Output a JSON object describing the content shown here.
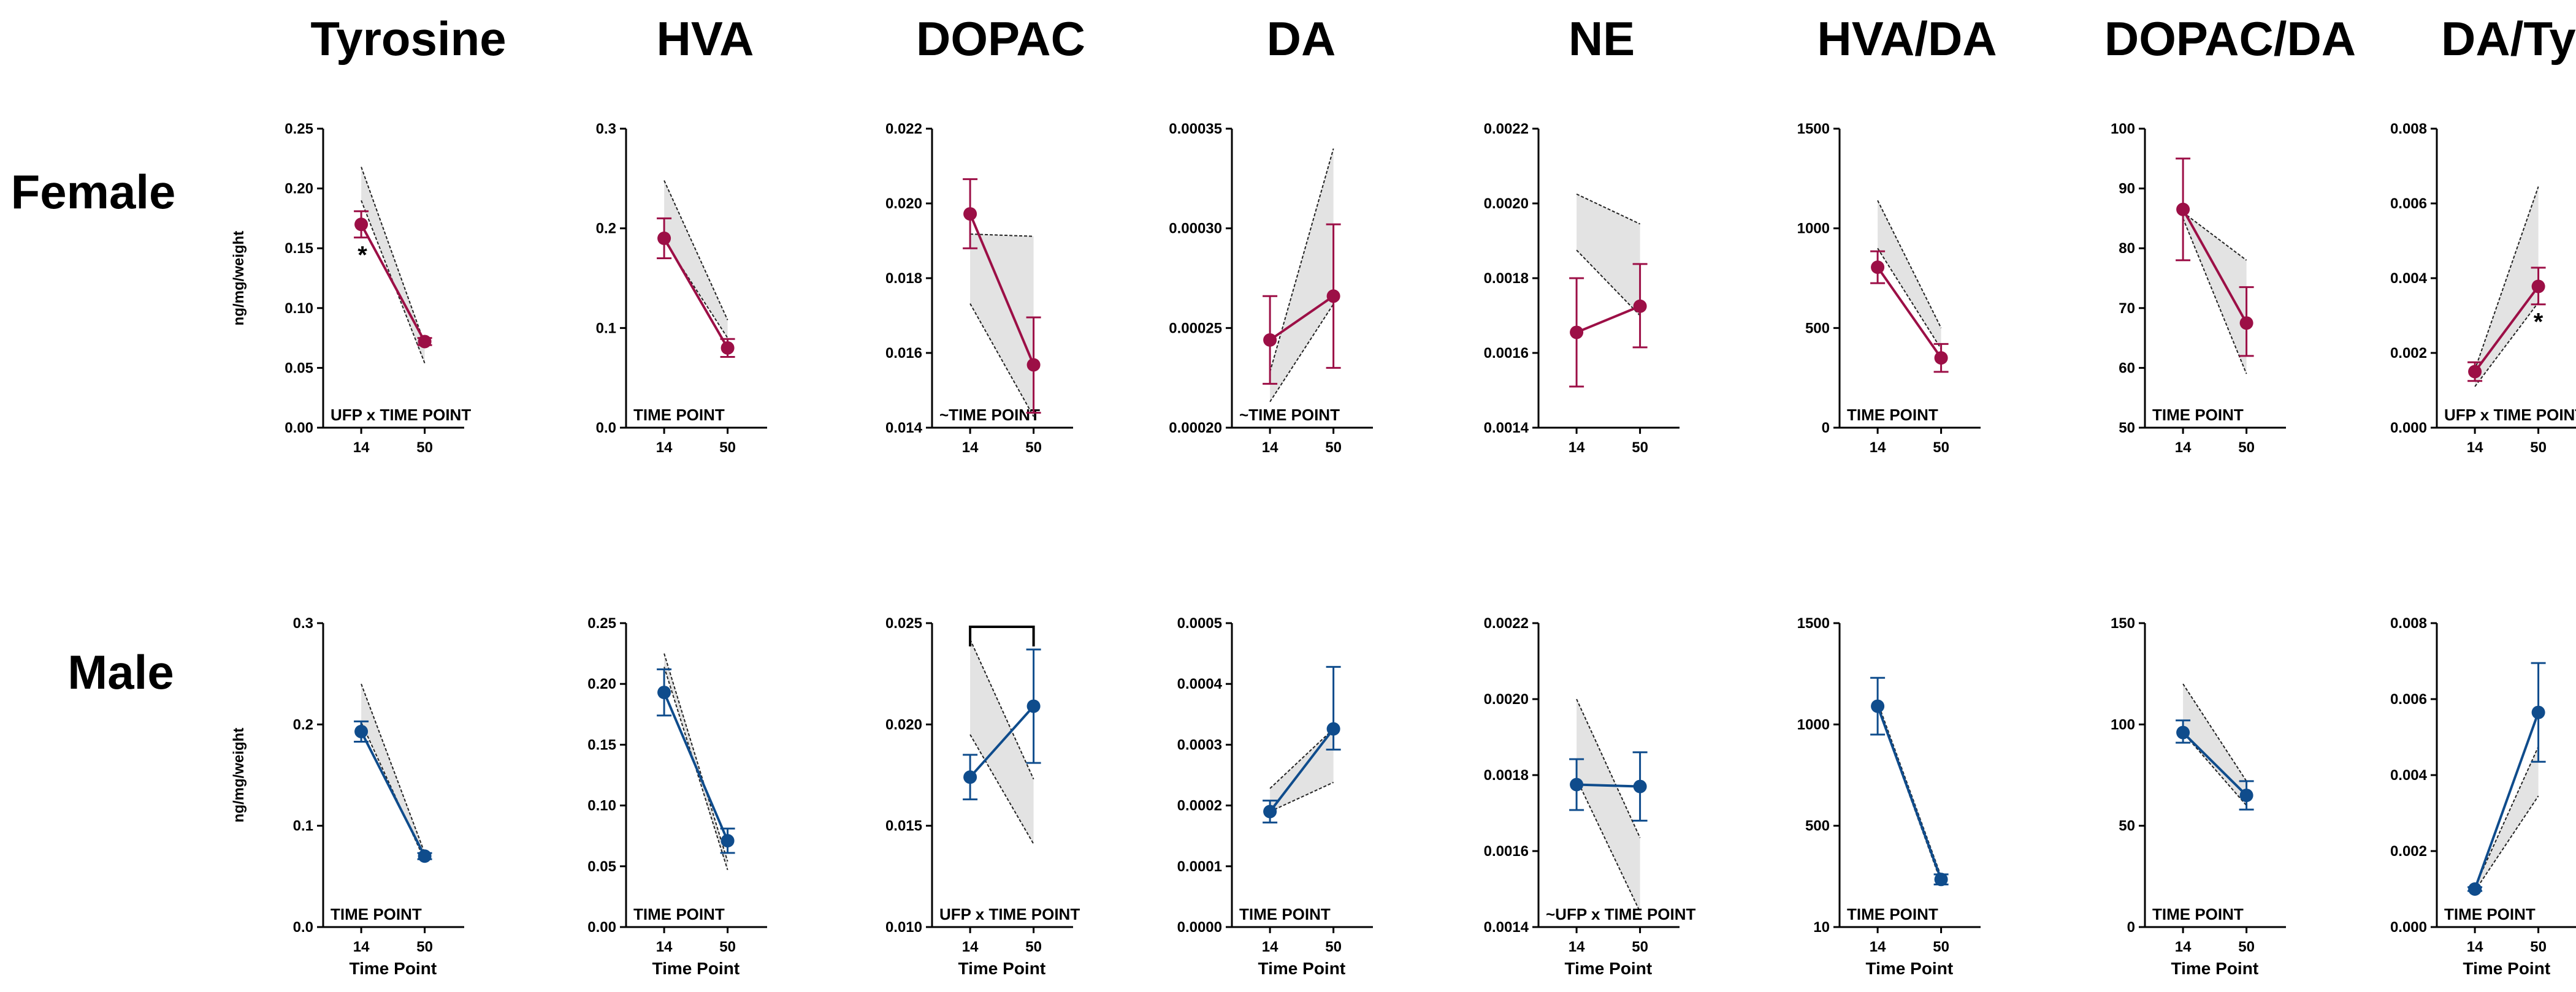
{
  "column_titles": [
    "Tyrosine",
    "HVA",
    "DOPAC",
    "DA",
    "NE",
    "HVA/DA",
    "DOPAC/DA",
    "DA/Tyr"
  ],
  "row_titles": [
    "Female",
    "Male"
  ],
  "colors": {
    "female": "#9c0f46",
    "male": "#0f4c8c",
    "band": "#e3e3e3",
    "axis": "#000000"
  },
  "chart_data": [
    {
      "type": "line",
      "row": "Female",
      "title": "Tyrosine",
      "ylabel": "ng/mg/weight",
      "xlabel": "",
      "x": [
        "14",
        "50"
      ],
      "ylim": [
        0,
        0.25
      ],
      "yticks": [
        "0.00",
        "0.05",
        "0.10",
        "0.15",
        "0.20",
        "0.25"
      ],
      "values": [
        0.17,
        0.072
      ],
      "err_low": [
        0.159,
        0.069
      ],
      "err_high": [
        0.181,
        0.075
      ],
      "band_upper": [
        0.218,
        0.07
      ],
      "band_lower": [
        0.19,
        0.054
      ],
      "annotation": "UFP x TIME POINT",
      "star": "*",
      "star_point": 0,
      "star_side": "below"
    },
    {
      "type": "line",
      "row": "Female",
      "title": "HVA",
      "ylabel": "",
      "xlabel": "",
      "x": [
        "14",
        "50"
      ],
      "ylim": [
        0,
        0.3
      ],
      "yticks": [
        "0.0",
        "0.1",
        "0.2",
        "0.3"
      ],
      "values": [
        0.19,
        0.08
      ],
      "err_low": [
        0.17,
        0.071
      ],
      "err_high": [
        0.21,
        0.089
      ],
      "band_upper": [
        0.248,
        0.108
      ],
      "band_lower": [
        0.188,
        0.09
      ],
      "annotation": "TIME POINT"
    },
    {
      "type": "line",
      "row": "Female",
      "title": "DOPAC",
      "ylabel": "",
      "xlabel": "",
      "x": [
        "14",
        "50"
      ],
      "ylim": [
        0.014,
        0.022
      ],
      "yticks": [
        "0.014",
        "0.016",
        "0.018",
        "0.020",
        "0.022"
      ],
      "values": [
        0.01972,
        0.01568
      ],
      "err_low": [
        0.0188,
        0.0144
      ],
      "err_high": [
        0.02065,
        0.01695
      ],
      "band_upper": [
        0.01918,
        0.01912
      ],
      "band_lower": [
        0.01732,
        0.0143
      ],
      "annotation": "~TIME POINT"
    },
    {
      "type": "line",
      "row": "Female",
      "title": "DA",
      "ylabel": "",
      "xlabel": "",
      "x": [
        "14",
        "50"
      ],
      "ylim": [
        0.0002,
        0.00035
      ],
      "yticks": [
        "0.00020",
        "0.00025",
        "0.00030",
        "0.00035"
      ],
      "values": [
        0.000244,
        0.000266
      ],
      "err_low": [
        0.000222,
        0.00023
      ],
      "err_high": [
        0.000266,
        0.000302
      ],
      "band_upper": [
        0.000228,
        0.00034
      ],
      "band_lower": [
        0.000213,
        0.000262
      ],
      "annotation": "~TIME POINT"
    },
    {
      "type": "line",
      "row": "Female",
      "title": "NE",
      "ylabel": "",
      "xlabel": "",
      "x": [
        "14",
        "50"
      ],
      "ylim": [
        0.0014,
        0.0022
      ],
      "yticks": [
        "0.0014",
        "0.0016",
        "0.0018",
        "0.0020",
        "0.0022"
      ],
      "values": [
        0.001655,
        0.001725
      ],
      "err_low": [
        0.00151,
        0.001615
      ],
      "err_high": [
        0.0018,
        0.001838
      ],
      "band_upper": [
        0.002025,
        0.001945
      ],
      "band_lower": [
        0.001875,
        0.0017
      ],
      "annotation": ""
    },
    {
      "type": "line",
      "row": "Female",
      "title": "HVA/DA",
      "ylabel": "",
      "xlabel": "",
      "x": [
        "14",
        "50"
      ],
      "ylim": [
        0,
        1500
      ],
      "yticks": [
        "0",
        "500",
        "1000",
        "1500"
      ],
      "values": [
        805,
        350
      ],
      "err_low": [
        725,
        280
      ],
      "err_high": [
        885,
        420
      ],
      "band_upper": [
        1140,
        500
      ],
      "band_lower": [
        900,
        395
      ],
      "annotation": "TIME POINT"
    },
    {
      "type": "line",
      "row": "Female",
      "title": "DOPAC/DA",
      "ylabel": "",
      "xlabel": "",
      "x": [
        "14",
        "50"
      ],
      "ylim": [
        50,
        100
      ],
      "yticks": [
        "50",
        "60",
        "70",
        "80",
        "90",
        "100"
      ],
      "values": [
        86.5,
        67.5
      ],
      "err_low": [
        78.0,
        62.0
      ],
      "err_high": [
        95.0,
        73.5
      ],
      "band_upper": [
        86.0,
        78.0
      ],
      "band_lower": [
        85.0,
        59.0
      ],
      "annotation": "TIME POINT"
    },
    {
      "type": "line",
      "row": "Female",
      "title": "DA/Tyr",
      "ylabel": "",
      "xlabel": "",
      "x": [
        "14",
        "50"
      ],
      "ylim": [
        0,
        0.008
      ],
      "yticks": [
        "0.000",
        "0.002",
        "0.004",
        "0.006",
        "0.008"
      ],
      "values": [
        0.0015,
        0.00378
      ],
      "err_low": [
        0.00125,
        0.0033
      ],
      "err_high": [
        0.00175,
        0.00428
      ],
      "band_upper": [
        0.00155,
        0.00645
      ],
      "band_lower": [
        0.0011,
        0.00335
      ],
      "annotation": "UFP x TIME POINT",
      "star": "*",
      "star_point": 1,
      "star_side": "below"
    },
    {
      "type": "line",
      "row": "Male",
      "title": "Tyrosine",
      "ylabel": "ng/mg/weight",
      "xlabel": "Time Point",
      "x": [
        "14",
        "50"
      ],
      "ylim": [
        0,
        0.3
      ],
      "yticks": [
        "0.0",
        "0.1",
        "0.2",
        "0.3"
      ],
      "values": [
        0.193,
        0.07
      ],
      "err_low": [
        0.183,
        0.067
      ],
      "err_high": [
        0.203,
        0.073
      ],
      "band_upper": [
        0.24,
        0.073
      ],
      "band_lower": [
        0.202,
        0.066
      ],
      "annotation": "TIME POINT"
    },
    {
      "type": "line",
      "row": "Male",
      "title": "HVA",
      "ylabel": "",
      "xlabel": "Time Point",
      "x": [
        "14",
        "50"
      ],
      "ylim": [
        0,
        0.25
      ],
      "yticks": [
        "0.00",
        "0.05",
        "0.10",
        "0.15",
        "0.20",
        "0.25"
      ],
      "values": [
        0.193,
        0.071
      ],
      "err_low": [
        0.174,
        0.061
      ],
      "err_high": [
        0.212,
        0.081
      ],
      "band_upper": [
        0.225,
        0.054
      ],
      "band_lower": [
        0.214,
        0.047
      ],
      "annotation": "TIME POINT"
    },
    {
      "type": "line",
      "row": "Male",
      "title": "DOPAC",
      "ylabel": "",
      "xlabel": "Time Point",
      "x": [
        "14",
        "50"
      ],
      "ylim": [
        0.01,
        0.025
      ],
      "yticks": [
        "0.010",
        "0.015",
        "0.020",
        "0.025"
      ],
      "values": [
        0.0174,
        0.0209
      ],
      "err_low": [
        0.0163,
        0.0181
      ],
      "err_high": [
        0.0185,
        0.0237
      ],
      "band_upper": [
        0.0242,
        0.0173
      ],
      "band_lower": [
        0.0195,
        0.0141
      ],
      "annotation": "UFP x TIME POINT",
      "bracket": true
    },
    {
      "type": "line",
      "row": "Male",
      "title": "DA",
      "ylabel": "",
      "xlabel": "Time Point",
      "x": [
        "14",
        "50"
      ],
      "ylim": [
        0,
        0.0005
      ],
      "yticks": [
        "0.0000",
        "0.0001",
        "0.0002",
        "0.0003",
        "0.0004",
        "0.0005"
      ],
      "values": [
        0.00019,
        0.000326
      ],
      "err_low": [
        0.000172,
        0.000292
      ],
      "err_high": [
        0.000208,
        0.000428
      ],
      "band_upper": [
        0.000228,
        0.000326
      ],
      "band_lower": [
        0.00019,
        0.000238
      ],
      "annotation": "TIME POINT"
    },
    {
      "type": "line",
      "row": "Male",
      "title": "NE",
      "ylabel": "",
      "xlabel": "Time Point",
      "x": [
        "14",
        "50"
      ],
      "ylim": [
        0.0014,
        0.0022
      ],
      "yticks": [
        "0.0014",
        "0.0016",
        "0.0018",
        "0.0020",
        "0.0022"
      ],
      "values": [
        0.001775,
        0.00177
      ],
      "err_low": [
        0.001708,
        0.00168
      ],
      "err_high": [
        0.001842,
        0.00186
      ],
      "band_upper": [
        0.002,
        0.001635
      ],
      "band_lower": [
        0.00179,
        0.00144
      ],
      "annotation": "~UFP x TIME POINT"
    },
    {
      "type": "line",
      "row": "Male",
      "title": "HVA/DA",
      "ylabel": "",
      "xlabel": "Time Point",
      "x": [
        "14",
        "50"
      ],
      "ylim": [
        0,
        1500
      ],
      "yticks": [
        "10",
        "500",
        "1000",
        "1500"
      ],
      "values": [
        1090,
        235
      ],
      "err_low": [
        950,
        210
      ],
      "err_high": [
        1230,
        260
      ],
      "band_upper": [
        1110,
        250
      ],
      "band_lower": [
        1085,
        220
      ],
      "annotation": "TIME POINT"
    },
    {
      "type": "line",
      "row": "Male",
      "title": "DOPAC/DA",
      "ylabel": "",
      "xlabel": "Time Point",
      "x": [
        "14",
        "50"
      ],
      "ylim": [
        0,
        150
      ],
      "yticks": [
        "0",
        "50",
        "100",
        "150"
      ],
      "values": [
        96,
        65
      ],
      "err_low": [
        91,
        58
      ],
      "err_high": [
        102,
        72
      ],
      "band_upper": [
        120,
        72
      ],
      "band_lower": [
        96,
        60
      ],
      "annotation": "TIME POINT"
    },
    {
      "type": "line",
      "row": "Male",
      "title": "DA/Tyr",
      "ylabel": "",
      "xlabel": "Time Point",
      "x": [
        "14",
        "50"
      ],
      "ylim": [
        0,
        0.008
      ],
      "yticks": [
        "0.000",
        "0.002",
        "0.004",
        "0.006",
        "0.008"
      ],
      "values": [
        0.001,
        0.00565
      ],
      "err_low": [
        0.00095,
        0.00435
      ],
      "err_high": [
        0.00105,
        0.00695
      ],
      "band_upper": [
        0.00105,
        0.00475
      ],
      "band_lower": [
        0.00095,
        0.00345
      ],
      "annotation": "TIME POINT"
    }
  ]
}
